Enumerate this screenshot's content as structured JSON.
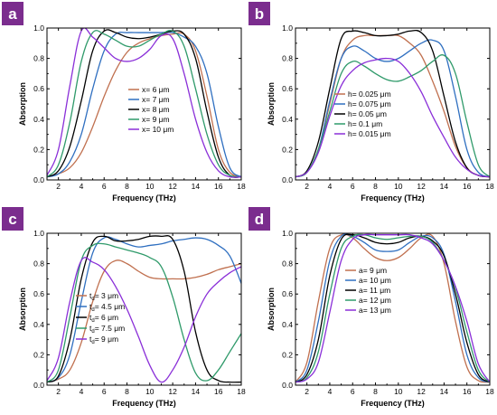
{
  "colors": {
    "badge": "#7b2d8e",
    "series": [
      "#c0704f",
      "#2f6fc0",
      "#000000",
      "#2f9a6a",
      "#8a2fd8"
    ]
  },
  "chart_data": [
    {
      "type": "line",
      "panel_label": "a",
      "xlabel": "Frequency (THz)",
      "ylabel": "Absorption",
      "xlim": [
        1,
        18
      ],
      "ylim": [
        0,
        1.0
      ],
      "x_ticks": [
        "2",
        "4",
        "6",
        "8",
        "10",
        "12",
        "14",
        "16",
        "18"
      ],
      "y_ticks": [
        "0.0",
        "0.2",
        "0.4",
        "0.6",
        "0.8",
        "1.0"
      ],
      "legend_position": "center",
      "series": [
        {
          "name": "x= 6 μm",
          "x": [
            1,
            2,
            3,
            4,
            5,
            6,
            7,
            8,
            9,
            10,
            11,
            12,
            13,
            14,
            15,
            16,
            17,
            18
          ],
          "y": [
            0.02,
            0.04,
            0.08,
            0.18,
            0.35,
            0.55,
            0.72,
            0.84,
            0.9,
            0.93,
            0.95,
            0.96,
            0.96,
            0.85,
            0.55,
            0.2,
            0.05,
            0.02
          ]
        },
        {
          "name": "x= 7 μm",
          "x": [
            1,
            2,
            3,
            4,
            5,
            6,
            7,
            8,
            9,
            10,
            11,
            12,
            13,
            14,
            15,
            16,
            17,
            18
          ],
          "y": [
            0.02,
            0.04,
            0.12,
            0.3,
            0.6,
            0.85,
            0.96,
            0.97,
            0.97,
            0.97,
            0.97,
            0.97,
            0.94,
            0.88,
            0.7,
            0.35,
            0.08,
            0.02
          ]
        },
        {
          "name": "x= 8 μm",
          "x": [
            1,
            2,
            3,
            4,
            5,
            6,
            7,
            8,
            9,
            10,
            11,
            12,
            13,
            14,
            15,
            16,
            17,
            18
          ],
          "y": [
            0.02,
            0.06,
            0.22,
            0.52,
            0.85,
            0.98,
            0.97,
            0.94,
            0.93,
            0.94,
            0.96,
            0.98,
            0.96,
            0.8,
            0.45,
            0.15,
            0.03,
            0.02
          ]
        },
        {
          "name": "x= 9 μm",
          "x": [
            1,
            2,
            3,
            4,
            5,
            6,
            7,
            8,
            9,
            10,
            11,
            12,
            13,
            14,
            15,
            16,
            17,
            18
          ],
          "y": [
            0.02,
            0.1,
            0.38,
            0.78,
            0.97,
            0.96,
            0.92,
            0.88,
            0.88,
            0.92,
            0.96,
            0.98,
            0.88,
            0.6,
            0.3,
            0.1,
            0.03,
            0.02
          ]
        },
        {
          "name": "x= 10 μm",
          "x": [
            1,
            2,
            3,
            4,
            5,
            6,
            7,
            8,
            9,
            10,
            11,
            12,
            13,
            14,
            15,
            16,
            17,
            18
          ],
          "y": [
            0.03,
            0.2,
            0.62,
            0.98,
            0.94,
            0.87,
            0.8,
            0.78,
            0.8,
            0.86,
            0.95,
            0.93,
            0.7,
            0.4,
            0.18,
            0.06,
            0.02,
            0.02
          ]
        }
      ]
    },
    {
      "type": "line",
      "panel_label": "b",
      "xlabel": "Frequency (THz)",
      "ylabel": "Absorption",
      "xlim": [
        1,
        18
      ],
      "ylim": [
        0,
        1.0
      ],
      "x_ticks": [
        "2",
        "4",
        "6",
        "8",
        "10",
        "12",
        "14",
        "16",
        "18"
      ],
      "y_ticks": [
        "0.0",
        "0.2",
        "0.4",
        "0.6",
        "0.8",
        "1.0"
      ],
      "legend_position": "center",
      "series": [
        {
          "name": "h= 0.025 μm",
          "x": [
            1,
            2,
            3,
            4,
            5,
            6,
            7,
            8,
            9,
            10,
            11,
            12,
            13,
            14,
            15,
            16,
            17,
            18
          ],
          "y": [
            0.02,
            0.05,
            0.2,
            0.5,
            0.8,
            0.92,
            0.95,
            0.95,
            0.95,
            0.95,
            0.9,
            0.82,
            0.65,
            0.45,
            0.22,
            0.08,
            0.03,
            0.02
          ]
        },
        {
          "name": "h= 0.075 μm",
          "x": [
            1,
            2,
            3,
            4,
            5,
            6,
            7,
            8,
            9,
            10,
            11,
            12,
            13,
            14,
            15,
            16,
            17,
            18
          ],
          "y": [
            0.02,
            0.05,
            0.2,
            0.52,
            0.8,
            0.88,
            0.85,
            0.8,
            0.78,
            0.8,
            0.85,
            0.9,
            0.92,
            0.85,
            0.55,
            0.2,
            0.05,
            0.02
          ]
        },
        {
          "name": "h= 0.05 μm",
          "x": [
            1,
            2,
            3,
            4,
            5,
            6,
            7,
            8,
            9,
            10,
            11,
            12,
            13,
            14,
            15,
            16,
            17,
            18
          ],
          "y": [
            0.02,
            0.06,
            0.25,
            0.6,
            0.93,
            0.98,
            0.97,
            0.95,
            0.95,
            0.96,
            0.98,
            0.97,
            0.85,
            0.55,
            0.25,
            0.08,
            0.03,
            0.02
          ]
        },
        {
          "name": "h= 0.1 μm",
          "x": [
            1,
            2,
            3,
            4,
            5,
            6,
            7,
            8,
            9,
            10,
            11,
            12,
            13,
            14,
            15,
            16,
            17,
            18
          ],
          "y": [
            0.02,
            0.05,
            0.2,
            0.45,
            0.7,
            0.78,
            0.75,
            0.7,
            0.66,
            0.65,
            0.68,
            0.72,
            0.78,
            0.82,
            0.7,
            0.38,
            0.1,
            0.02
          ]
        },
        {
          "name": "h= 0.015 μm",
          "x": [
            1,
            2,
            3,
            4,
            5,
            6,
            7,
            8,
            9,
            10,
            11,
            12,
            13,
            14,
            15,
            16,
            17,
            18
          ],
          "y": [
            0.02,
            0.05,
            0.18,
            0.42,
            0.62,
            0.72,
            0.77,
            0.79,
            0.8,
            0.78,
            0.7,
            0.58,
            0.42,
            0.28,
            0.15,
            0.07,
            0.03,
            0.02
          ]
        }
      ]
    },
    {
      "type": "line",
      "panel_label": "c",
      "xlabel": "Frequency (THz)",
      "ylabel": "Absorption",
      "xlim": [
        1,
        18
      ],
      "ylim": [
        0,
        1.0
      ],
      "x_ticks": [
        "2",
        "4",
        "6",
        "8",
        "10",
        "12",
        "14",
        "16",
        "18"
      ],
      "y_ticks": [
        "0.0",
        "0.2",
        "0.4",
        "0.6",
        "0.8",
        "1.0"
      ],
      "legend_position": "bottom-left",
      "series": [
        {
          "name": "3 μm",
          "x": [
            1,
            2,
            3,
            4,
            5,
            6,
            7,
            8,
            9,
            10,
            11,
            12,
            13,
            14,
            15,
            16,
            17,
            18
          ],
          "y": [
            0.02,
            0.04,
            0.1,
            0.28,
            0.55,
            0.75,
            0.82,
            0.8,
            0.75,
            0.71,
            0.7,
            0.7,
            0.7,
            0.71,
            0.73,
            0.76,
            0.78,
            0.8
          ]
        },
        {
          "name": "4.5 μm",
          "x": [
            1,
            2,
            3,
            4,
            5,
            6,
            7,
            8,
            9,
            10,
            11,
            12,
            13,
            14,
            15,
            16,
            17,
            18
          ],
          "y": [
            0.02,
            0.05,
            0.2,
            0.55,
            0.87,
            0.97,
            0.96,
            0.93,
            0.91,
            0.92,
            0.93,
            0.95,
            0.96,
            0.97,
            0.96,
            0.92,
            0.85,
            0.67
          ]
        },
        {
          "name": "6 μm",
          "x": [
            1,
            2,
            3,
            4,
            5,
            6,
            7,
            8,
            9,
            10,
            11,
            12,
            13,
            14,
            15,
            16,
            17,
            18
          ],
          "y": [
            0.02,
            0.06,
            0.3,
            0.7,
            0.94,
            0.98,
            0.95,
            0.95,
            0.96,
            0.98,
            0.98,
            0.96,
            0.75,
            0.35,
            0.1,
            0.03,
            0.02,
            0.02
          ]
        },
        {
          "name": "7.5 μm",
          "x": [
            1,
            2,
            3,
            4,
            5,
            6,
            7,
            8,
            9,
            10,
            11,
            12,
            13,
            14,
            15,
            16,
            17,
            18
          ],
          "y": [
            0.02,
            0.1,
            0.45,
            0.82,
            0.92,
            0.93,
            0.91,
            0.89,
            0.87,
            0.84,
            0.78,
            0.58,
            0.3,
            0.08,
            0.03,
            0.1,
            0.22,
            0.34
          ]
        },
        {
          "name": "9 μm",
          "x": [
            1,
            2,
            3,
            4,
            5,
            6,
            7,
            8,
            9,
            10,
            11,
            12,
            13,
            14,
            15,
            16,
            17,
            18
          ],
          "y": [
            0.03,
            0.18,
            0.55,
            0.82,
            0.81,
            0.76,
            0.65,
            0.5,
            0.32,
            0.13,
            0.02,
            0.1,
            0.25,
            0.45,
            0.6,
            0.68,
            0.74,
            0.78
          ]
        }
      ]
    },
    {
      "type": "line",
      "panel_label": "d",
      "xlabel": "Frequency (THz)",
      "ylabel": "Absorption",
      "xlim": [
        1,
        18
      ],
      "ylim": [
        0,
        1.0
      ],
      "x_ticks": [
        "2",
        "4",
        "6",
        "8",
        "10",
        "12",
        "14",
        "16",
        "18"
      ],
      "y_ticks": [
        "0.0",
        "0.2",
        "0.4",
        "0.6",
        "0.8",
        "1.0"
      ],
      "legend_position": "center",
      "series": [
        {
          "name": "a= 9 μm",
          "x": [
            1,
            2,
            3,
            4,
            5,
            6,
            7,
            8,
            9,
            10,
            11,
            12,
            13,
            14,
            15,
            16,
            17,
            18
          ],
          "y": [
            0.02,
            0.15,
            0.55,
            0.9,
            0.99,
            0.97,
            0.9,
            0.84,
            0.82,
            0.84,
            0.9,
            0.97,
            0.98,
            0.8,
            0.42,
            0.12,
            0.03,
            0.02
          ]
        },
        {
          "name": "a= 10 μm",
          "x": [
            1,
            2,
            3,
            4,
            5,
            6,
            7,
            8,
            9,
            10,
            11,
            12,
            13,
            14,
            15,
            16,
            17,
            18
          ],
          "y": [
            0.02,
            0.1,
            0.42,
            0.82,
            0.98,
            0.98,
            0.94,
            0.89,
            0.88,
            0.89,
            0.94,
            0.98,
            0.97,
            0.86,
            0.55,
            0.2,
            0.05,
            0.02
          ]
        },
        {
          "name": "a= 11 μm",
          "x": [
            1,
            2,
            3,
            4,
            5,
            6,
            7,
            8,
            9,
            10,
            11,
            12,
            13,
            14,
            15,
            16,
            17,
            18
          ],
          "y": [
            0.02,
            0.07,
            0.3,
            0.72,
            0.96,
            0.99,
            0.97,
            0.94,
            0.93,
            0.94,
            0.97,
            0.98,
            0.95,
            0.85,
            0.6,
            0.28,
            0.07,
            0.02
          ]
        },
        {
          "name": "a= 12 μm",
          "x": [
            1,
            2,
            3,
            4,
            5,
            6,
            7,
            8,
            9,
            10,
            11,
            12,
            13,
            14,
            15,
            16,
            17,
            18
          ],
          "y": [
            0.02,
            0.05,
            0.22,
            0.6,
            0.9,
            0.98,
            0.99,
            0.97,
            0.96,
            0.97,
            0.98,
            0.98,
            0.94,
            0.82,
            0.64,
            0.35,
            0.1,
            0.02
          ]
        },
        {
          "name": "a= 13 μm",
          "x": [
            1,
            2,
            3,
            4,
            5,
            6,
            7,
            8,
            9,
            10,
            11,
            12,
            13,
            14,
            15,
            16,
            17,
            18
          ],
          "y": [
            0.02,
            0.04,
            0.15,
            0.48,
            0.82,
            0.96,
            0.99,
            0.99,
            0.99,
            0.99,
            0.99,
            0.97,
            0.93,
            0.82,
            0.65,
            0.42,
            0.14,
            0.02
          ]
        }
      ]
    }
  ]
}
